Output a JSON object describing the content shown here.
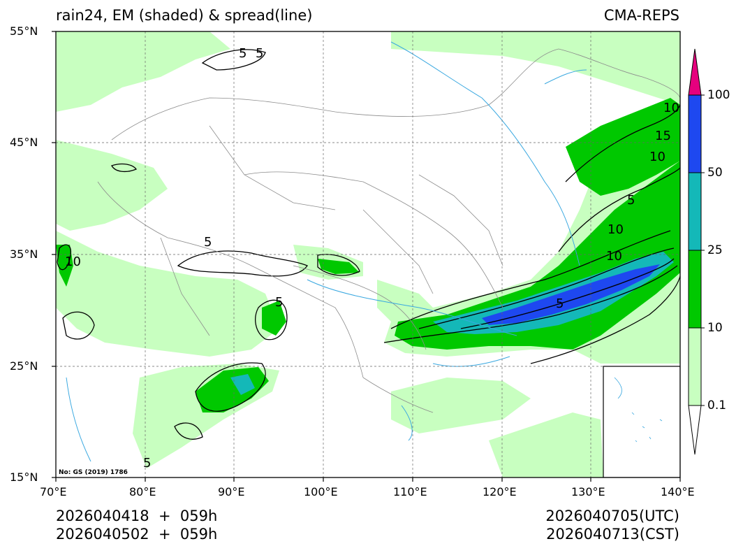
{
  "header": {
    "title_left": "rain24, EM (shaded) & spread(line)",
    "title_right": "CMA-REPS"
  },
  "axes": {
    "lat_labels": [
      "55°N",
      "45°N",
      "35°N",
      "25°N",
      "15°N"
    ],
    "lon_labels": [
      "70°E",
      "80°E",
      "90°E",
      "100°E",
      "110°E",
      "120°E",
      "130°E",
      "140°E"
    ],
    "lat_range": [
      15,
      55
    ],
    "lon_range": [
      70,
      140
    ]
  },
  "colorbar": {
    "labels": [
      "100",
      "50",
      "25",
      "10",
      "0.1"
    ],
    "colors": {
      "over": "#e6007e",
      "c50_100": "#1e48f0",
      "c25_50": "#14b8b8",
      "c10_25": "#00c800",
      "c01_10": "#c8ffc0",
      "under": "#ffffff"
    }
  },
  "contour_labels": [
    "5",
    "5",
    "10",
    "15",
    "10",
    "5",
    "10",
    "10",
    "5",
    "5",
    "10",
    "5",
    "5"
  ],
  "footer": {
    "init_line1": "2026040418  +  059h",
    "init_line2": "2026040502  +  059h",
    "valid_utc": "2026040705(UTC)",
    "valid_cst": "2026040713(CST)"
  },
  "note": "No: GS (2019) 1786"
}
